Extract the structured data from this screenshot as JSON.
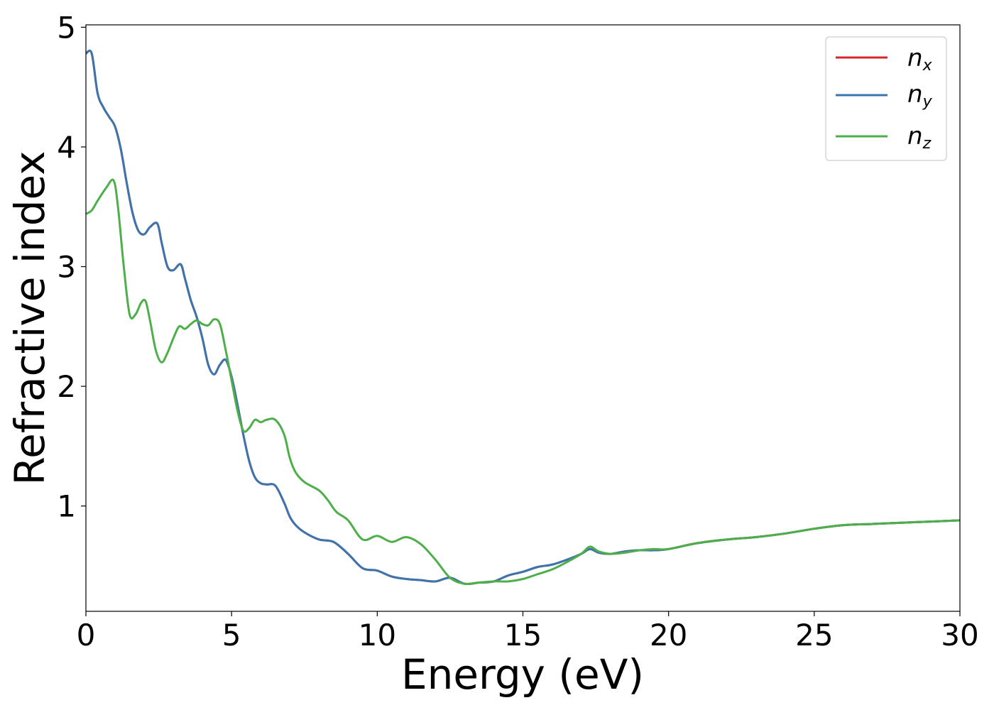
{
  "chart_data": {
    "type": "line",
    "xlabel": "Energy (eV)",
    "ylabel": "Refractive index",
    "xlim": [
      0,
      30
    ],
    "ylim": [
      0.12,
      5.02
    ],
    "xticks": [
      "0",
      "5",
      "10",
      "15",
      "20",
      "25",
      "30"
    ],
    "yticks": [
      "1",
      "2",
      "3",
      "4",
      "5"
    ],
    "grid": false,
    "legend_position": "top-right",
    "series": [
      {
        "name": "n_x",
        "color": "#d62728",
        "x": [
          0,
          0.2,
          0.4,
          0.6,
          0.8,
          1.0,
          1.2,
          1.4,
          1.6,
          1.8,
          2.0,
          2.2,
          2.45,
          2.6,
          2.8,
          3.0,
          3.25,
          3.4,
          3.6,
          3.8,
          4.0,
          4.2,
          4.4,
          4.6,
          4.8,
          5.0,
          5.2,
          5.4,
          5.6,
          5.8,
          6.0,
          6.2,
          6.5,
          6.8,
          7.0,
          7.2,
          7.5,
          8.0,
          8.5,
          9.0,
          9.5,
          10.0,
          10.5,
          11.0,
          11.5,
          12.0,
          12.5,
          13.0,
          13.5,
          14.0,
          14.5,
          15.0,
          15.5,
          16.0,
          16.5,
          17.0,
          17.3,
          17.6,
          18.0,
          18.5,
          19.0,
          19.5,
          20.0,
          21.0,
          22.0,
          23.0,
          24.0,
          25.0,
          26.0,
          27.0,
          28.0,
          29.0,
          30.0
        ],
        "values": [
          4.78,
          4.78,
          4.45,
          4.33,
          4.25,
          4.17,
          3.98,
          3.7,
          3.45,
          3.3,
          3.27,
          3.33,
          3.36,
          3.2,
          3.0,
          2.97,
          3.02,
          2.9,
          2.72,
          2.58,
          2.4,
          2.18,
          2.1,
          2.18,
          2.22,
          2.08,
          1.85,
          1.6,
          1.38,
          1.24,
          1.19,
          1.18,
          1.17,
          1.03,
          0.91,
          0.84,
          0.78,
          0.72,
          0.7,
          0.6,
          0.48,
          0.46,
          0.41,
          0.39,
          0.38,
          0.37,
          0.4,
          0.35,
          0.36,
          0.37,
          0.42,
          0.45,
          0.49,
          0.51,
          0.55,
          0.6,
          0.64,
          0.61,
          0.6,
          0.62,
          0.63,
          0.63,
          0.64,
          0.69,
          0.72,
          0.74,
          0.77,
          0.81,
          0.84,
          0.85,
          0.86,
          0.87,
          0.88
        ]
      },
      {
        "name": "n_y",
        "color": "#3b75af",
        "x": [
          0,
          0.2,
          0.4,
          0.6,
          0.8,
          1.0,
          1.2,
          1.4,
          1.6,
          1.8,
          2.0,
          2.2,
          2.45,
          2.6,
          2.8,
          3.0,
          3.25,
          3.4,
          3.6,
          3.8,
          4.0,
          4.2,
          4.4,
          4.6,
          4.8,
          5.0,
          5.2,
          5.4,
          5.6,
          5.8,
          6.0,
          6.2,
          6.5,
          6.8,
          7.0,
          7.2,
          7.5,
          8.0,
          8.5,
          9.0,
          9.5,
          10.0,
          10.5,
          11.0,
          11.5,
          12.0,
          12.5,
          13.0,
          13.5,
          14.0,
          14.5,
          15.0,
          15.5,
          16.0,
          16.5,
          17.0,
          17.3,
          17.6,
          18.0,
          18.5,
          19.0,
          19.5,
          20.0,
          21.0,
          22.0,
          23.0,
          24.0,
          25.0,
          26.0,
          27.0,
          28.0,
          29.0,
          30.0
        ],
        "values": [
          4.78,
          4.78,
          4.45,
          4.33,
          4.25,
          4.17,
          3.98,
          3.7,
          3.45,
          3.3,
          3.27,
          3.33,
          3.36,
          3.2,
          3.0,
          2.97,
          3.02,
          2.9,
          2.72,
          2.58,
          2.4,
          2.18,
          2.1,
          2.18,
          2.22,
          2.08,
          1.85,
          1.6,
          1.38,
          1.24,
          1.19,
          1.18,
          1.17,
          1.03,
          0.91,
          0.84,
          0.78,
          0.72,
          0.7,
          0.6,
          0.48,
          0.46,
          0.41,
          0.39,
          0.38,
          0.37,
          0.4,
          0.35,
          0.36,
          0.37,
          0.42,
          0.45,
          0.49,
          0.51,
          0.55,
          0.6,
          0.64,
          0.61,
          0.6,
          0.62,
          0.63,
          0.63,
          0.64,
          0.69,
          0.72,
          0.74,
          0.77,
          0.81,
          0.84,
          0.85,
          0.86,
          0.87,
          0.88
        ]
      },
      {
        "name": "n_z",
        "color": "#4daf4a",
        "x": [
          0,
          0.2,
          0.4,
          0.7,
          0.95,
          1.1,
          1.3,
          1.5,
          1.7,
          1.9,
          2.05,
          2.2,
          2.4,
          2.6,
          2.8,
          3.0,
          3.2,
          3.4,
          3.6,
          3.8,
          4.0,
          4.2,
          4.4,
          4.6,
          4.8,
          5.0,
          5.2,
          5.4,
          5.6,
          5.8,
          6.0,
          6.2,
          6.5,
          6.8,
          7.0,
          7.2,
          7.5,
          8.0,
          8.3,
          8.6,
          9.0,
          9.5,
          10.0,
          10.5,
          11.0,
          11.5,
          12.0,
          12.5,
          13.0,
          13.5,
          14.0,
          14.5,
          15.0,
          15.5,
          16.0,
          16.5,
          17.0,
          17.3,
          17.6,
          18.0,
          18.5,
          19.0,
          19.5,
          20.0,
          21.0,
          22.0,
          23.0,
          24.0,
          25.0,
          26.0,
          27.0,
          28.0,
          29.0,
          30.0
        ],
        "values": [
          3.44,
          3.47,
          3.55,
          3.66,
          3.72,
          3.5,
          3.0,
          2.6,
          2.6,
          2.7,
          2.71,
          2.55,
          2.3,
          2.2,
          2.28,
          2.4,
          2.5,
          2.48,
          2.52,
          2.55,
          2.52,
          2.51,
          2.56,
          2.52,
          2.3,
          2.05,
          1.8,
          1.63,
          1.65,
          1.72,
          1.7,
          1.72,
          1.72,
          1.6,
          1.4,
          1.28,
          1.2,
          1.13,
          1.05,
          0.95,
          0.88,
          0.72,
          0.75,
          0.7,
          0.74,
          0.68,
          0.55,
          0.4,
          0.35,
          0.36,
          0.37,
          0.37,
          0.39,
          0.43,
          0.47,
          0.53,
          0.6,
          0.66,
          0.62,
          0.6,
          0.61,
          0.63,
          0.64,
          0.64,
          0.69,
          0.72,
          0.74,
          0.77,
          0.81,
          0.84,
          0.85,
          0.86,
          0.87,
          0.88
        ]
      }
    ]
  },
  "legend": [
    {
      "base": "n",
      "sub": "x"
    },
    {
      "base": "n",
      "sub": "y"
    },
    {
      "base": "n",
      "sub": "z"
    }
  ]
}
